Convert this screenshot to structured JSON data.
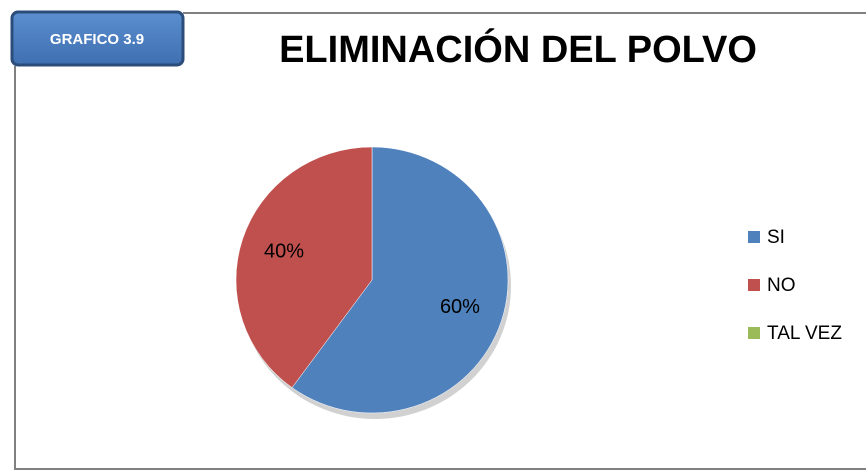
{
  "chart_data": {
    "type": "pie",
    "badge": "GRAFICO 3.9",
    "title": "ELIMINACIÓN DEL POLVO",
    "categories": [
      "SI",
      "NO",
      "TAL VEZ"
    ],
    "values": [
      60,
      40,
      0
    ],
    "value_labels": [
      "60%",
      "40%",
      null
    ],
    "colors": [
      "#4f81bd",
      "#c0504d",
      "#9bbb59"
    ],
    "legend": "right"
  }
}
